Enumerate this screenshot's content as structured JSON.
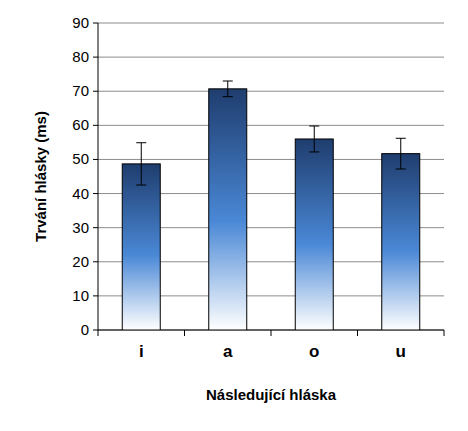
{
  "chart_data": {
    "type": "bar",
    "x_label": "Následující hláska",
    "y_label": "Trvání hlásky (ms)",
    "categories": [
      "i",
      "a",
      "o",
      "u"
    ],
    "values": [
      48.7,
      70.7,
      56,
      51.7
    ],
    "errors": [
      6.2,
      2.3,
      3.8,
      4.5
    ],
    "color": "#1f3d6e",
    "ylim": [
      0,
      90
    ],
    "yticks": [
      0,
      10,
      20,
      30,
      40,
      50,
      60,
      70,
      80,
      90
    ],
    "grid": true
  }
}
